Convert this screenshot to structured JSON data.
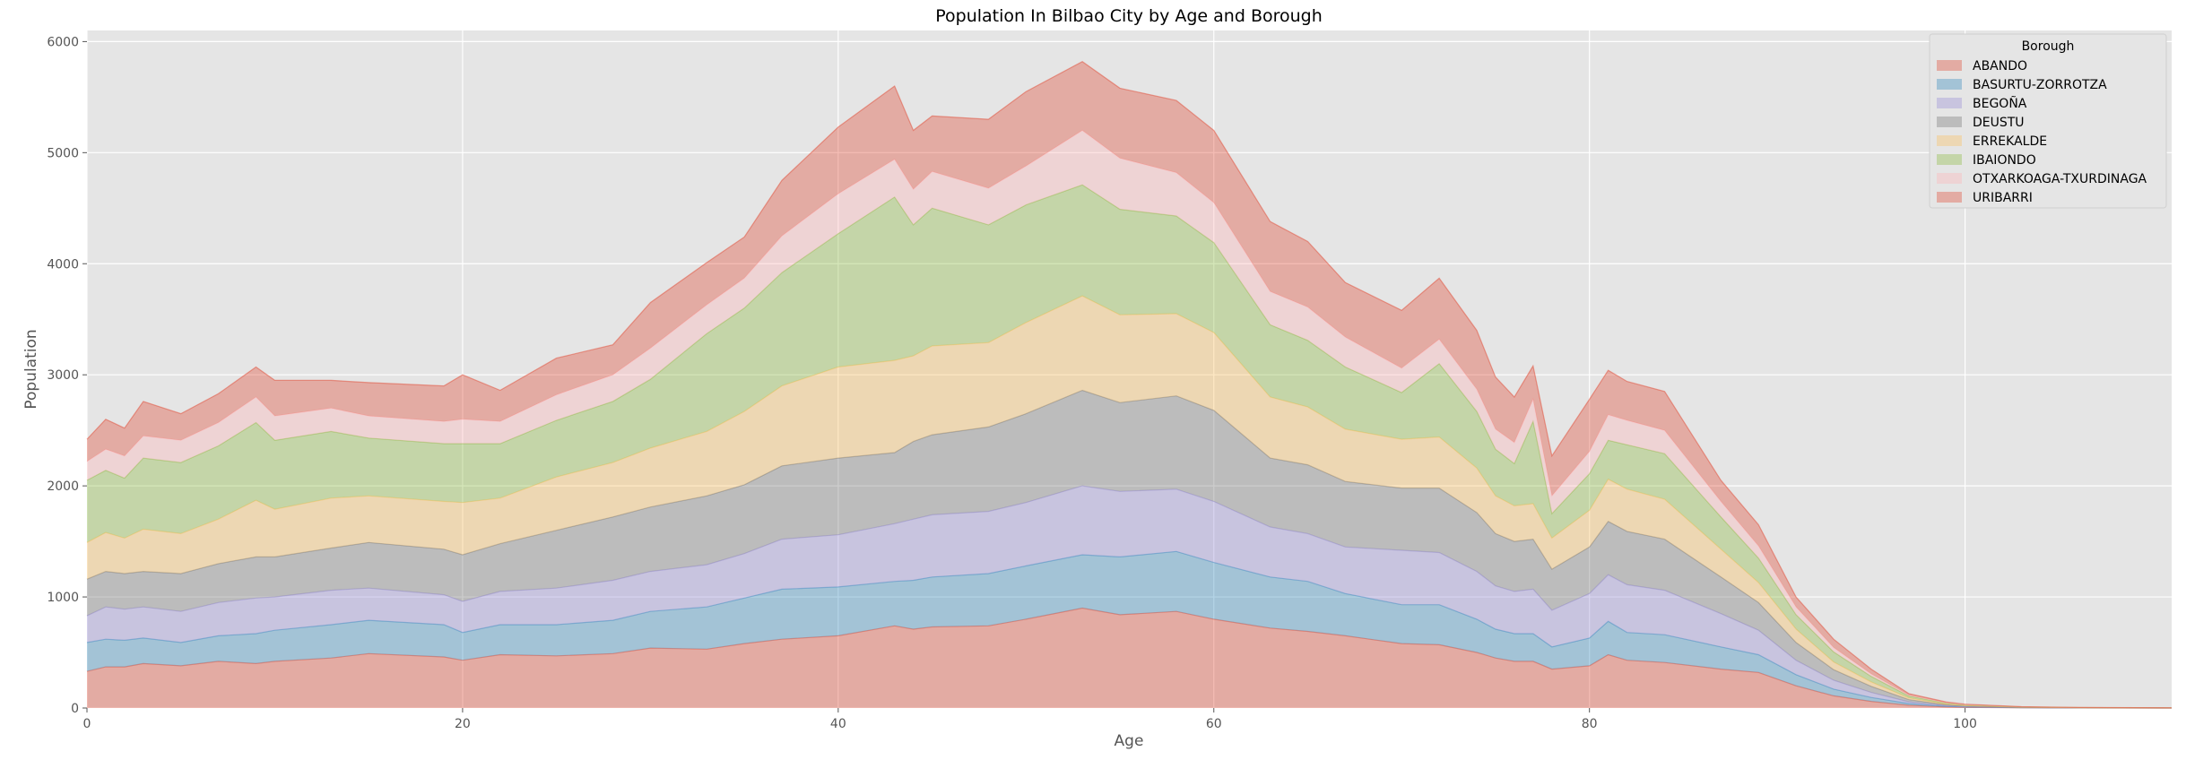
{
  "chart_data": {
    "type": "area",
    "stacked": true,
    "title": "Population In Bilbao City by Age and Borough",
    "xlabel": "Age",
    "ylabel": "Population",
    "xlim": [
      0,
      111
    ],
    "ylim": [
      0,
      6100
    ],
    "xticks": [
      0,
      20,
      40,
      60,
      80,
      100
    ],
    "yticks": [
      0,
      1000,
      2000,
      3000,
      4000,
      5000,
      6000
    ],
    "grid": true,
    "legend_title": "Borough",
    "legend_position": "top-right",
    "anchors": {
      "x": [
        0,
        1,
        2,
        3,
        5,
        7,
        9,
        10,
        13,
        15,
        19,
        20,
        22,
        25,
        28,
        30,
        33,
        35,
        37,
        40,
        43,
        44,
        45,
        48,
        50,
        53,
        55,
        58,
        60,
        63,
        65,
        67,
        70,
        72,
        74,
        75,
        76,
        77,
        78,
        80,
        81,
        82,
        84,
        87,
        89,
        91,
        93,
        95,
        97,
        99,
        100,
        103,
        106,
        111
      ],
      "total": [
        2420,
        2600,
        2520,
        2760,
        2650,
        2830,
        3070,
        2950,
        2950,
        2930,
        2900,
        3000,
        2860,
        3150,
        3270,
        3650,
        4010,
        4240,
        4750,
        5230,
        5600,
        5200,
        5330,
        5300,
        5550,
        5820,
        5580,
        5470,
        5200,
        4380,
        4200,
        3830,
        3580,
        3870,
        3400,
        2980,
        2800,
        3080,
        2270,
        2780,
        3040,
        2940,
        2850,
        2050,
        1650,
        1000,
        620,
        350,
        130,
        55,
        35,
        12,
        5,
        2
      ],
      "ABANDO": [
        330,
        370,
        370,
        400,
        380,
        420,
        400,
        420,
        450,
        490,
        460,
        430,
        480,
        470,
        490,
        540,
        530,
        580,
        620,
        650,
        740,
        710,
        730,
        740,
        800,
        900,
        840,
        870,
        800,
        720,
        690,
        650,
        580,
        570,
        500,
        450,
        420,
        420,
        350,
        380,
        480,
        430,
        410,
        350,
        320,
        200,
        110,
        60,
        25,
        10,
        6,
        2,
        1,
        0
      ],
      "BASURTU-ZORROTZA": [
        260,
        250,
        240,
        230,
        210,
        230,
        270,
        280,
        300,
        300,
        290,
        250,
        270,
        280,
        300,
        330,
        380,
        410,
        450,
        440,
        400,
        440,
        450,
        470,
        480,
        480,
        520,
        540,
        510,
        460,
        450,
        380,
        350,
        360,
        300,
        260,
        250,
        250,
        200,
        250,
        300,
        250,
        250,
        200,
        160,
        100,
        60,
        35,
        15,
        5,
        3,
        1,
        0,
        0
      ],
      "BEGOÑA": [
        240,
        290,
        280,
        280,
        280,
        300,
        320,
        300,
        310,
        290,
        270,
        280,
        300,
        330,
        360,
        360,
        380,
        400,
        450,
        470,
        520,
        550,
        560,
        560,
        570,
        620,
        590,
        560,
        550,
        450,
        430,
        420,
        490,
        470,
        430,
        390,
        380,
        400,
        330,
        400,
        420,
        430,
        400,
        300,
        220,
        130,
        80,
        45,
        16,
        6,
        4,
        1,
        0,
        0
      ],
      "DEUSTU": [
        330,
        320,
        320,
        320,
        340,
        350,
        370,
        360,
        380,
        410,
        410,
        420,
        430,
        520,
        570,
        580,
        620,
        620,
        660,
        690,
        640,
        700,
        720,
        760,
        800,
        860,
        800,
        840,
        820,
        620,
        620,
        590,
        560,
        580,
        530,
        470,
        450,
        450,
        370,
        420,
        480,
        480,
        460,
        330,
        250,
        160,
        95,
        55,
        20,
        8,
        5,
        2,
        1,
        0
      ],
      "ERREKALDE": [
        330,
        350,
        320,
        380,
        360,
        400,
        510,
        430,
        450,
        420,
        430,
        470,
        410,
        480,
        490,
        530,
        580,
        660,
        720,
        820,
        830,
        770,
        800,
        760,
        820,
        850,
        790,
        740,
        700,
        550,
        520,
        470,
        440,
        460,
        400,
        340,
        320,
        320,
        280,
        330,
        380,
        380,
        360,
        250,
        180,
        120,
        70,
        40,
        15,
        6,
        4,
        1,
        1,
        0
      ],
      "IBAIONDO": [
        560,
        560,
        540,
        640,
        640,
        660,
        700,
        620,
        600,
        520,
        520,
        530,
        490,
        510,
        550,
        620,
        880,
        930,
        1020,
        1200,
        1470,
        1180,
        1240,
        1060,
        1060,
        1000,
        950,
        880,
        810,
        650,
        600,
        560,
        420,
        660,
        510,
        420,
        380,
        740,
        220,
        330,
        350,
        400,
        410,
        290,
        220,
        130,
        90,
        50,
        18,
        8,
        5,
        2,
        1,
        1
      ],
      "OTXARKOAGA-TXURDINAGA": [
        170,
        190,
        200,
        200,
        200,
        210,
        230,
        220,
        210,
        200,
        200,
        220,
        200,
        230,
        240,
        280,
        260,
        270,
        330,
        360,
        340,
        320,
        330,
        330,
        350,
        490,
        460,
        390,
        360,
        300,
        300,
        270,
        220,
        220,
        200,
        180,
        190,
        200,
        160,
        200,
        230,
        220,
        210,
        140,
        110,
        70,
        40,
        22,
        8,
        4,
        3,
        1,
        0,
        0
      ],
      "URIBARRI": [
        200,
        270,
        250,
        310,
        240,
        260,
        270,
        320,
        250,
        300,
        320,
        400,
        280,
        330,
        270,
        390,
        370,
        370,
        500,
        600,
        650,
        530,
        500,
        620,
        670,
        620,
        630,
        650,
        650,
        630,
        590,
        490,
        520,
        550,
        530,
        470,
        410,
        300,
        360,
        470,
        400,
        350,
        350,
        190,
        190,
        90,
        75,
        43,
        13,
        8,
        5,
        2,
        1,
        1
      ]
    },
    "series": [
      {
        "name": "ABANDO",
        "color": "#e24a33"
      },
      {
        "name": "BASURTU-ZORROTZA",
        "color": "#348abd"
      },
      {
        "name": "BEGOÑA",
        "color": "#988ed5"
      },
      {
        "name": "DEUSTU",
        "color": "#777777"
      },
      {
        "name": "ERREKALDE",
        "color": "#fbc15e"
      },
      {
        "name": "IBAIONDO",
        "color": "#8eba42"
      },
      {
        "name": "OTXARKOAGA-TXURDINAGA",
        "color": "#ffb5b8"
      },
      {
        "name": "URIBARRI",
        "color": "#e24a33"
      }
    ]
  }
}
